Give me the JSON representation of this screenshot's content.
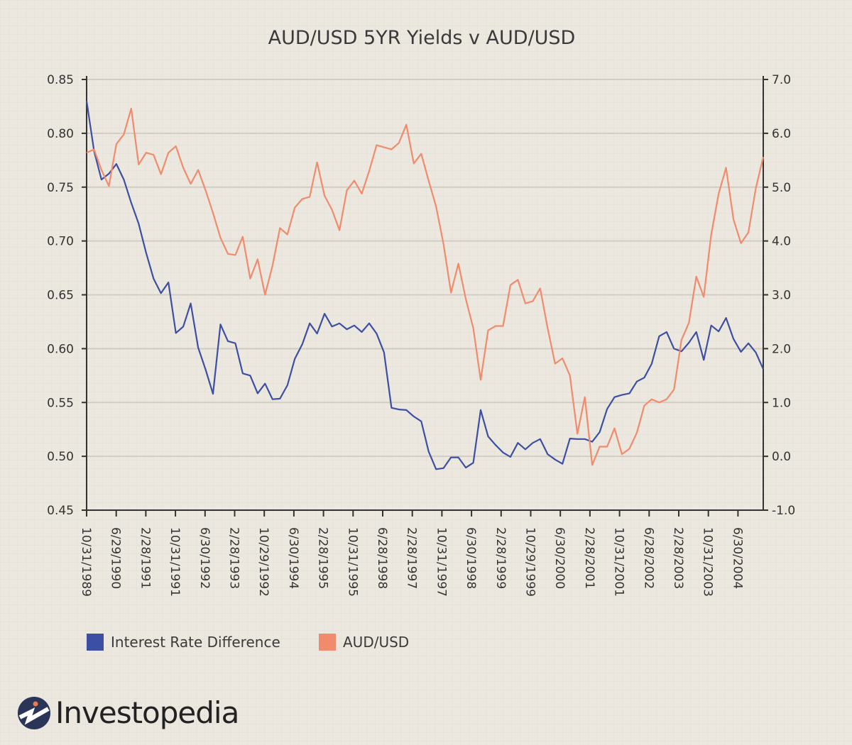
{
  "chart_data": {
    "type": "line",
    "title": "AUD/USD 5YR Yields v AUD/USD",
    "xlabel": "",
    "x_tick_labels": [
      "10/31/1989",
      "6/29/1990",
      "2/28/1991",
      "10/31/1991",
      "6/30/1992",
      "2/28/1993",
      "10/29/1992",
      "6/30/1994",
      "2/28/1995",
      "10/31/1995",
      "6/28/1998",
      "2/28/1997",
      "10/31/1997",
      "6/30/1998",
      "2/28/1999",
      "10/29/1999",
      "6/30/2000",
      "2/28/2001",
      "10/31/2001",
      "6/28/2002",
      "2/28/2003",
      "10/31/2003",
      "6/30/2004"
    ],
    "y_left": {
      "ylim": [
        0.45,
        0.85
      ],
      "ticks": [
        "0.85",
        "0.80",
        "0.75",
        "0.70",
        "0.65",
        "0.60",
        "0.55",
        "0.50",
        "0.45"
      ]
    },
    "y_right": {
      "ylim": [
        -1.0,
        7.0
      ],
      "ticks": [
        "7.0",
        "6.0",
        "5.0",
        "4.0",
        "3.0",
        "2.0",
        "1.0",
        "0.0",
        "-1.0"
      ]
    },
    "grid": "horizontal",
    "legend_placement": "bottom",
    "series": [
      {
        "name": "Interest Rate Difference",
        "axis": "right",
        "color": "#3d4fa3",
        "values": [
          6.6,
          5.67,
          5.14,
          5.25,
          5.43,
          5.14,
          4.71,
          4.32,
          3.78,
          3.3,
          3.03,
          3.23,
          2.29,
          2.41,
          2.84,
          2.02,
          1.61,
          1.16,
          2.45,
          2.14,
          2.1,
          1.54,
          1.5,
          1.17,
          1.35,
          1.06,
          1.07,
          1.32,
          1.81,
          2.08,
          2.47,
          2.28,
          2.65,
          2.41,
          2.47,
          2.36,
          2.43,
          2.31,
          2.47,
          2.28,
          1.93,
          0.9,
          0.87,
          0.86,
          0.74,
          0.65,
          0.09,
          -0.24,
          -0.22,
          -0.02,
          -0.02,
          -0.21,
          -0.12,
          0.86,
          0.37,
          0.21,
          0.07,
          -0.01,
          0.25,
          0.13,
          0.25,
          0.32,
          0.04,
          -0.06,
          -0.14,
          0.33,
          0.32,
          0.32,
          0.27,
          0.45,
          0.88,
          1.1,
          1.14,
          1.17,
          1.39,
          1.46,
          1.72,
          2.23,
          2.31,
          2.0,
          1.95,
          2.11,
          2.31,
          1.79,
          2.43,
          2.32,
          2.57,
          2.18,
          1.94,
          2.1,
          1.93,
          1.62
        ]
      },
      {
        "name": "AUD/USD",
        "axis": "left",
        "color": "#f08b6d",
        "values": [
          0.782,
          0.785,
          0.766,
          0.751,
          0.79,
          0.799,
          0.823,
          0.771,
          0.782,
          0.78,
          0.762,
          0.782,
          0.788,
          0.768,
          0.753,
          0.766,
          0.747,
          0.726,
          0.703,
          0.688,
          0.687,
          0.704,
          0.665,
          0.683,
          0.65,
          0.677,
          0.712,
          0.706,
          0.731,
          0.739,
          0.741,
          0.773,
          0.742,
          0.729,
          0.71,
          0.747,
          0.756,
          0.744,
          0.765,
          0.789,
          0.787,
          0.785,
          0.791,
          0.808,
          0.772,
          0.781,
          0.756,
          0.732,
          0.697,
          0.652,
          0.679,
          0.646,
          0.619,
          0.571,
          0.617,
          0.621,
          0.621,
          0.659,
          0.664,
          0.642,
          0.644,
          0.656,
          0.619,
          0.586,
          0.591,
          0.575,
          0.521,
          0.555,
          0.492,
          0.509,
          0.509,
          0.526,
          0.502,
          0.507,
          0.522,
          0.547,
          0.553,
          0.55,
          0.553,
          0.562,
          0.608,
          0.624,
          0.667,
          0.648,
          0.706,
          0.744,
          0.768,
          0.72,
          0.698,
          0.708,
          0.749,
          0.778
        ]
      }
    ]
  },
  "legend": {
    "items": [
      "Interest Rate Difference",
      "AUD/USD"
    ]
  },
  "brand": {
    "name": "Investopedia"
  }
}
